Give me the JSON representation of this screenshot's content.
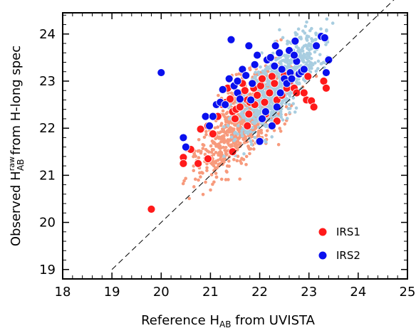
{
  "chart_data": {
    "type": "scatter",
    "xlabel_main": "Reference H",
    "xlabel_sub": "AB",
    "xlabel_tail": " from UVISTA",
    "ylabel_main": "Observed H",
    "ylabel_sup": "raw",
    "ylabel_sub": "AB",
    "ylabel_tail": " from H-long spec",
    "xlim": [
      18,
      25
    ],
    "ylim": [
      18.8,
      24.45
    ],
    "xticks": [
      "18",
      "19",
      "20",
      "21",
      "22",
      "23",
      "24",
      "25"
    ],
    "yticks": [
      "19",
      "20",
      "21",
      "22",
      "23",
      "24"
    ],
    "reference_line": {
      "style": "dashed",
      "x": [
        19,
        24.9
      ],
      "y": [
        19,
        24.9
      ]
    },
    "legend": {
      "position": "bottom-right"
    },
    "series": [
      {
        "name": "IRS1",
        "color": "#ff1a1a",
        "points": [
          [
            19.8,
            20.28
          ],
          [
            20.45,
            21.38
          ],
          [
            20.45,
            21.25
          ],
          [
            20.6,
            21.55
          ],
          [
            20.75,
            21.25
          ],
          [
            20.95,
            21.35
          ],
          [
            20.8,
            21.98
          ],
          [
            20.95,
            22.05
          ],
          [
            21.05,
            21.88
          ],
          [
            21.15,
            22.25
          ],
          [
            21.25,
            22.5
          ],
          [
            21.32,
            22.55
          ],
          [
            21.4,
            22.62
          ],
          [
            21.35,
            22.85
          ],
          [
            21.45,
            22.35
          ],
          [
            21.52,
            22.4
          ],
          [
            21.6,
            22.45
          ],
          [
            21.58,
            22.75
          ],
          [
            21.65,
            22.95
          ],
          [
            21.75,
            22.6
          ],
          [
            21.8,
            22.55
          ],
          [
            21.78,
            22.3
          ],
          [
            21.88,
            22.85
          ],
          [
            21.9,
            22.5
          ],
          [
            21.95,
            22.7
          ],
          [
            22.02,
            22.9
          ],
          [
            22.05,
            23.05
          ],
          [
            22.1,
            22.55
          ],
          [
            22.12,
            22.3
          ],
          [
            22.2,
            22.75
          ],
          [
            22.25,
            23.1
          ],
          [
            22.3,
            22.95
          ],
          [
            22.35,
            22.6
          ],
          [
            22.45,
            22.7
          ],
          [
            22.5,
            23.12
          ],
          [
            22.55,
            22.85
          ],
          [
            22.62,
            23.0
          ],
          [
            22.7,
            22.85
          ],
          [
            22.75,
            22.75
          ],
          [
            22.82,
            23.18
          ],
          [
            22.95,
            22.6
          ],
          [
            22.98,
            23.1
          ],
          [
            23.05,
            22.58
          ],
          [
            23.1,
            22.45
          ],
          [
            23.3,
            23.0
          ],
          [
            23.35,
            22.85
          ],
          [
            22.35,
            22.15
          ],
          [
            21.45,
            21.5
          ],
          [
            21.75,
            22.05
          ],
          [
            21.7,
            22.8
          ],
          [
            22.9,
            22.75
          ],
          [
            21.5,
            22.2
          ]
        ]
      },
      {
        "name": "IRS2",
        "color": "#0a10ee",
        "points": [
          [
            20.0,
            23.18
          ],
          [
            20.45,
            21.8
          ],
          [
            20.5,
            21.6
          ],
          [
            20.9,
            22.25
          ],
          [
            20.98,
            22.05
          ],
          [
            21.05,
            22.25
          ],
          [
            21.12,
            22.5
          ],
          [
            21.2,
            22.55
          ],
          [
            21.25,
            22.82
          ],
          [
            21.3,
            22.5
          ],
          [
            21.38,
            23.05
          ],
          [
            21.42,
            23.88
          ],
          [
            21.48,
            22.9
          ],
          [
            21.55,
            22.75
          ],
          [
            21.6,
            22.62
          ],
          [
            21.65,
            23.25
          ],
          [
            21.72,
            23.12
          ],
          [
            21.78,
            23.75
          ],
          [
            21.82,
            22.6
          ],
          [
            21.9,
            23.35
          ],
          [
            21.95,
            23.55
          ],
          [
            22.0,
            21.72
          ],
          [
            22.05,
            22.2
          ],
          [
            22.12,
            22.35
          ],
          [
            22.15,
            23.45
          ],
          [
            22.22,
            23.5
          ],
          [
            22.25,
            22.05
          ],
          [
            22.3,
            23.32
          ],
          [
            22.32,
            23.75
          ],
          [
            22.4,
            23.6
          ],
          [
            22.45,
            23.25
          ],
          [
            22.5,
            23.05
          ],
          [
            22.55,
            22.95
          ],
          [
            22.6,
            23.65
          ],
          [
            22.62,
            23.18
          ],
          [
            22.65,
            23.05
          ],
          [
            22.72,
            23.85
          ],
          [
            22.75,
            23.42
          ],
          [
            22.8,
            23.15
          ],
          [
            22.85,
            23.2
          ],
          [
            22.9,
            23.25
          ],
          [
            23.15,
            23.75
          ],
          [
            23.25,
            23.95
          ],
          [
            23.32,
            23.92
          ],
          [
            23.4,
            23.45
          ],
          [
            23.35,
            23.18
          ],
          [
            22.42,
            22.75
          ],
          [
            21.85,
            22.95
          ],
          [
            22.35,
            22.45
          ],
          [
            21.55,
            23.0
          ],
          [
            22.7,
            23.55
          ]
        ]
      }
    ]
  }
}
